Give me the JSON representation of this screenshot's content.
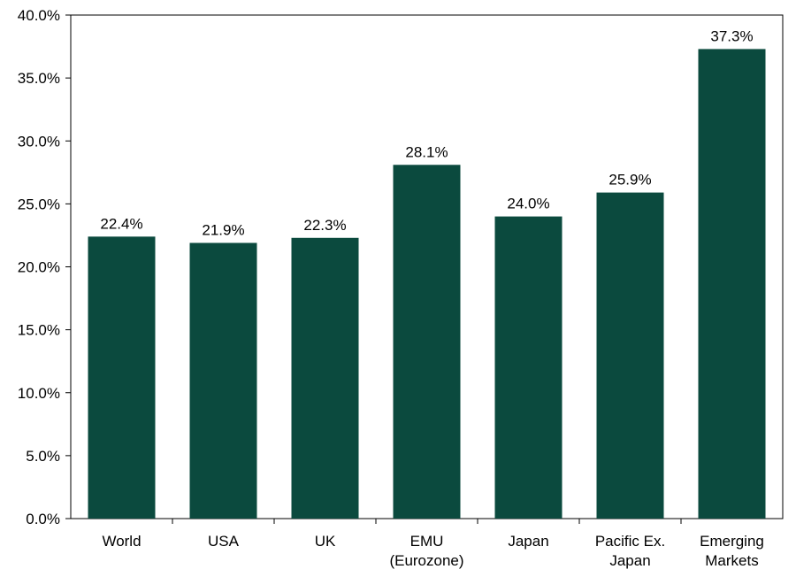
{
  "chart_data": {
    "type": "bar",
    "categories": [
      [
        "World"
      ],
      [
        "USA"
      ],
      [
        "UK"
      ],
      [
        "EMU",
        "(Eurozone)"
      ],
      [
        "Japan"
      ],
      [
        "Pacific Ex.",
        "Japan"
      ],
      [
        "Emerging",
        "Markets"
      ]
    ],
    "values": [
      22.4,
      21.9,
      22.3,
      28.1,
      24.0,
      25.9,
      37.3
    ],
    "data_labels": [
      "22.4%",
      "21.9%",
      "22.3%",
      "28.1%",
      "24.0%",
      "25.9%",
      "37.3%"
    ],
    "ylim": [
      0,
      40
    ],
    "yticks": [
      0,
      5,
      10,
      15,
      20,
      25,
      30,
      35,
      40
    ],
    "ytick_labels": [
      "0.0%",
      "5.0%",
      "10.0%",
      "15.0%",
      "20.0%",
      "25.0%",
      "30.0%",
      "35.0%",
      "40.0%"
    ],
    "title": "",
    "xlabel": "",
    "ylabel": "",
    "grid": false,
    "legend": "none",
    "bar_color": "#0b4a3e"
  }
}
